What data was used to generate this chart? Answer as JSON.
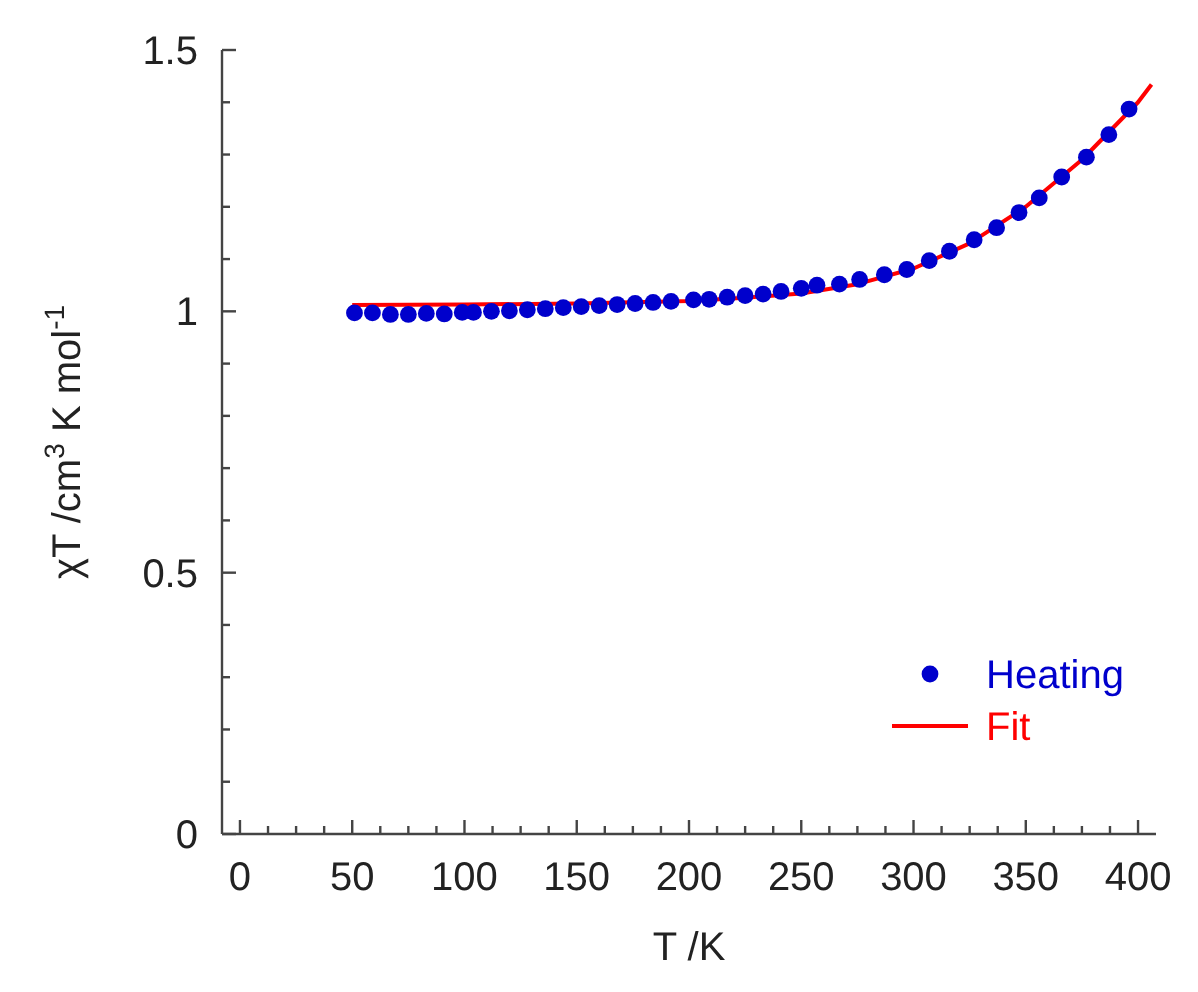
{
  "chart_data": {
    "type": "scatter",
    "xlabel": "T /K",
    "ylabel": "χT /cm$^{3}$ K mol$^{-1}$",
    "xlim": [
      -8,
      408
    ],
    "ylim": [
      0,
      1.5
    ],
    "xticks": [
      0,
      50,
      100,
      150,
      200,
      250,
      300,
      350,
      400
    ],
    "yticks": [
      0,
      0.5,
      1,
      1.5
    ],
    "legend": "bottom right",
    "series": [
      {
        "name": "Heating",
        "marker": "circle",
        "color": "#0000cc",
        "x": [
          51,
          59,
          67,
          75,
          83,
          91,
          99,
          104,
          112,
          120,
          128,
          136,
          144,
          152,
          160,
          168,
          176,
          184,
          192,
          202,
          209,
          217,
          225,
          233,
          241,
          250,
          257,
          267,
          276,
          287,
          297,
          307,
          316,
          327,
          337,
          347,
          356,
          366,
          377,
          387,
          396
        ],
        "values": [
          0.997,
          0.997,
          0.994,
          0.994,
          0.996,
          0.995,
          0.998,
          0.998,
          1.0,
          1.001,
          1.003,
          1.005,
          1.007,
          1.009,
          1.011,
          1.013,
          1.015,
          1.017,
          1.019,
          1.022,
          1.023,
          1.027,
          1.03,
          1.033,
          1.038,
          1.044,
          1.05,
          1.052,
          1.061,
          1.07,
          1.08,
          1.097,
          1.115,
          1.137,
          1.16,
          1.189,
          1.217,
          1.257,
          1.295,
          1.338,
          1.387
        ]
      },
      {
        "name": "Fit",
        "type": "line",
        "marker": "none",
        "line_style": "solid",
        "color": "#ff0000",
        "x": [
          50,
          100,
          150,
          200,
          225,
          250,
          275,
          300,
          325,
          350,
          375,
          400,
          406
        ],
        "values": [
          1.012,
          1.013,
          1.015,
          1.02,
          1.026,
          1.034,
          1.052,
          1.082,
          1.13,
          1.2,
          1.29,
          1.4,
          1.434
        ]
      }
    ]
  }
}
